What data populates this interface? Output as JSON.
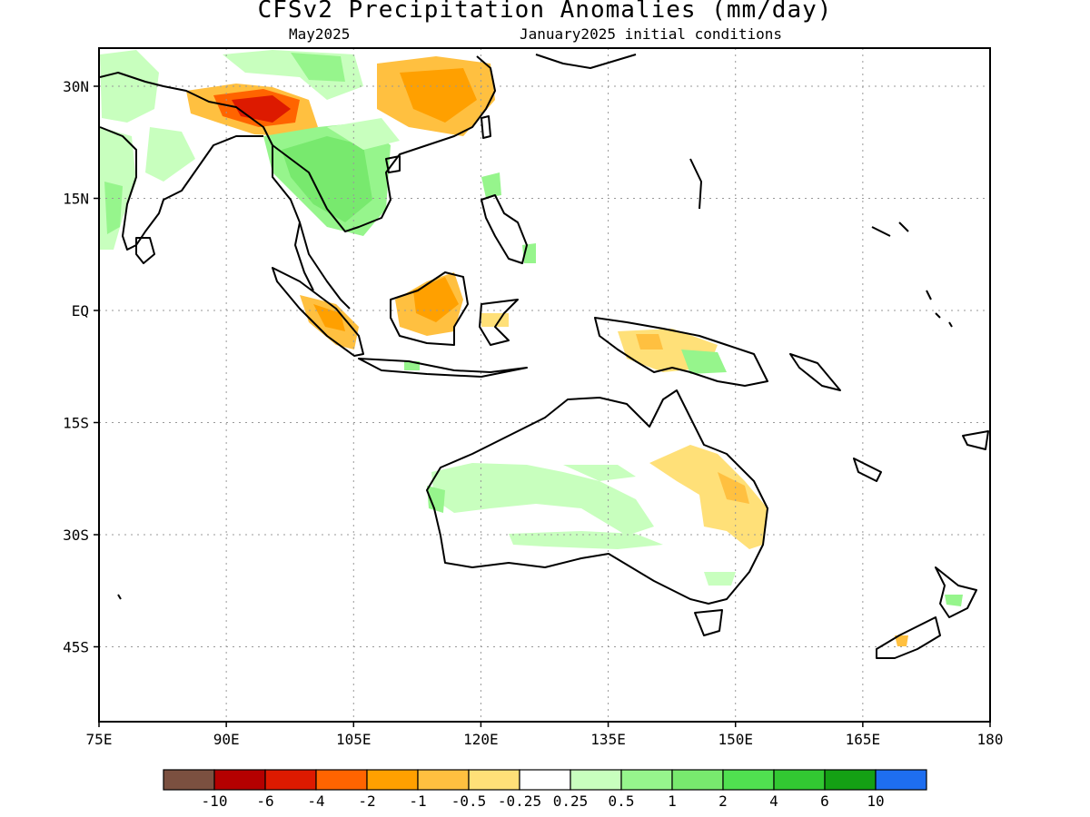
{
  "title": "CFSv2 Precipitation Anomalies (mm/day)",
  "valid_month": "May2025",
  "init_conditions": "January2025 initial conditions",
  "lat_ticks": [
    "30N",
    "15N",
    "EQ",
    "15S",
    "30S",
    "45S"
  ],
  "lon_ticks": [
    "75E",
    "90E",
    "105E",
    "120E",
    "135E",
    "150E",
    "165E",
    "180"
  ],
  "colorbar": {
    "colors": [
      "#7b5040",
      "#b40000",
      "#dd1a00",
      "#ff6400",
      "#ffa000",
      "#ffc040",
      "#ffe078",
      "#ffffff",
      "#c8ffbe",
      "#96f58c",
      "#78e96e",
      "#50e050",
      "#32c832",
      "#14a014",
      "#1e6ef0"
    ],
    "labels": [
      "-10",
      "-6",
      "-4",
      "-2",
      "-1",
      "-0.5",
      "-0.25",
      "0.25",
      "0.5",
      "1",
      "2",
      "4",
      "6",
      "10"
    ]
  },
  "anomaly_regions": [
    {
      "name": "tibet-east-himalaya",
      "level": "-2"
    },
    {
      "name": "south-china",
      "level": "-1"
    },
    {
      "name": "indochina",
      "level": "1"
    },
    {
      "name": "indian-subcontinent",
      "level": "0.5"
    },
    {
      "name": "borneo",
      "level": "-1"
    },
    {
      "name": "sumatra",
      "level": "-1"
    },
    {
      "name": "new-guinea",
      "level": "-0.5"
    },
    {
      "name": "queensland",
      "level": "-0.5"
    },
    {
      "name": "western-australia",
      "level": "0.5"
    }
  ]
}
